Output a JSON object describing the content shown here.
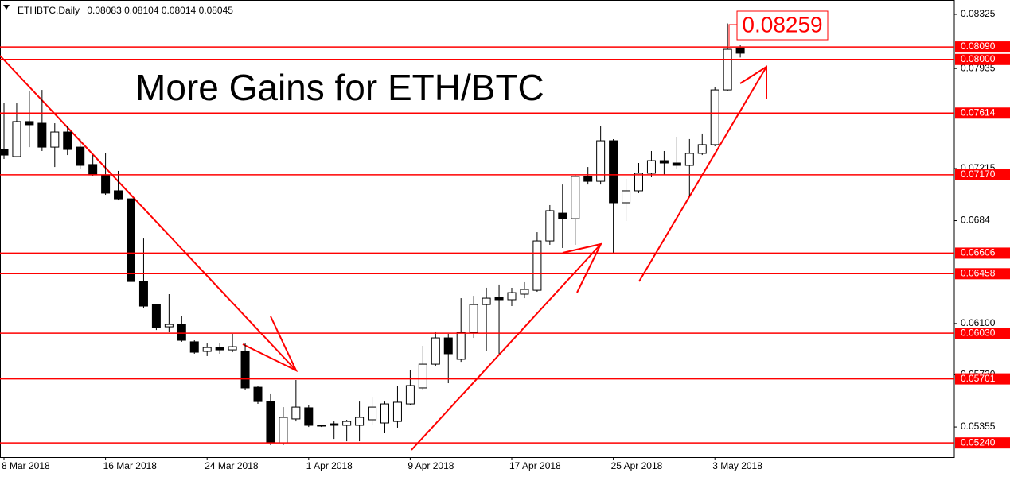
{
  "chart_data": {
    "type": "candlestick",
    "title": "More Gains for ETH/BTC",
    "symbol": "ETHBTC,Daily",
    "categories": [
      "8 Mar 2018",
      null,
      null,
      null,
      null,
      null,
      null,
      null,
      "16 Mar 2018",
      null,
      null,
      null,
      null,
      null,
      null,
      null,
      "24 Mar 2018",
      null,
      null,
      null,
      null,
      null,
      null,
      null,
      "1 Apr 2018",
      null,
      null,
      null,
      null,
      null,
      null,
      null,
      "9 Apr 2018",
      null,
      null,
      null,
      null,
      null,
      null,
      null,
      "17 Apr 2018",
      null,
      null,
      null,
      null,
      null,
      null,
      null,
      "25 Apr 2018",
      null,
      null,
      null,
      null,
      null,
      null,
      null,
      "3 May 2018",
      null,
      null
    ],
    "open": [
      0.07352,
      0.07301,
      0.07553,
      0.07541,
      0.07369,
      0.07478,
      0.07369,
      0.07244,
      0.07169,
      0.07055,
      0.06997,
      0.06402,
      0.06236,
      0.06076,
      0.06093,
      0.05968,
      0.05899,
      0.05927,
      0.0591,
      0.05899,
      0.05641,
      0.05538,
      0.05241,
      0.05413,
      0.05493,
      0.05367,
      0.05378,
      0.05367,
      0.05367,
      0.05407,
      0.05384,
      0.05395,
      0.05521,
      0.05636,
      0.05807,
      0.05996,
      0.05842,
      0.06036,
      0.06236,
      0.06288,
      0.06271,
      0.06311,
      0.06339,
      0.06694,
      0.06894,
      0.06854,
      0.07158,
      0.07123,
      0.07415,
      0.06969,
      0.07055,
      0.07181,
      0.07272,
      0.07255,
      0.07238,
      0.07324,
      0.07387,
      0.07781,
      0.08083
    ],
    "high": [
      0.07684,
      0.07684,
      0.0777,
      0.07781,
      0.07541,
      0.07524,
      0.07427,
      0.07312,
      0.07329,
      0.07198,
      0.07026,
      0.06711,
      0.06236,
      0.06311,
      0.06151,
      0.05979,
      0.05956,
      0.05956,
      0.06025,
      0.05956,
      0.05653,
      0.05596,
      0.05498,
      0.05693,
      0.0551,
      0.05372,
      0.05395,
      0.05407,
      0.05538,
      0.05567,
      0.05538,
      0.05653,
      0.05767,
      0.05939,
      0.06036,
      0.06025,
      0.06282,
      0.06299,
      0.06357,
      0.0638,
      0.06357,
      0.06397,
      0.06757,
      0.06952,
      0.071,
      0.07169,
      0.07226,
      0.07524,
      0.07427,
      0.07141,
      0.07255,
      0.07341,
      0.07341,
      0.07444,
      0.07427,
      0.07467,
      0.07799,
      0.08259,
      0.08104
    ],
    "low": [
      0.07284,
      0.07295,
      0.07369,
      0.07341,
      0.07226,
      0.07312,
      0.07215,
      0.07158,
      0.07026,
      0.06986,
      0.06071,
      0.06208,
      0.06053,
      0.06036,
      0.05968,
      0.05882,
      0.05865,
      0.05882,
      0.05893,
      0.05624,
      0.05521,
      0.05224,
      0.05224,
      0.05395,
      0.05355,
      0.05355,
      0.05269,
      0.05252,
      0.05252,
      0.05367,
      0.0531,
      0.0535,
      0.0551,
      0.05624,
      0.05796,
      0.0567,
      0.05824,
      0.05996,
      0.05899,
      0.05882,
      0.06225,
      0.06282,
      0.06328,
      0.06666,
      0.06643,
      0.06666,
      0.071,
      0.071,
      0.06608,
      0.06837,
      0.07038,
      0.07152,
      0.07169,
      0.07209,
      0.0702,
      0.07312,
      0.07375,
      0.0777,
      0.08014
    ],
    "close": [
      0.07312,
      0.07553,
      0.0753,
      0.07369,
      0.07478,
      0.07352,
      0.07238,
      0.07169,
      0.07038,
      0.06997,
      0.06402,
      0.06225,
      0.06071,
      0.06093,
      0.05979,
      0.05893,
      0.05927,
      0.0591,
      0.05933,
      0.05636,
      0.05538,
      0.05241,
      0.05424,
      0.05498,
      0.05367,
      0.05367,
      0.05367,
      0.05395,
      0.05424,
      0.05498,
      0.05521,
      0.05533,
      0.05653,
      0.05807,
      0.05996,
      0.05882,
      0.06036,
      0.06236,
      0.06282,
      0.06271,
      0.06322,
      0.06345,
      0.06694,
      0.06912,
      0.06854,
      0.07158,
      0.07123,
      0.07415,
      0.06969,
      0.07055,
      0.07181,
      0.07272,
      0.07255,
      0.07238,
      0.07324,
      0.07387,
      0.07781,
      0.08073,
      0.08045
    ],
    "up_color": "#ffffff",
    "down_color": "#000000",
    "ylim": [
      0.05138,
      0.08428
    ],
    "yticks": [
      0.08325,
      0.07935,
      0.07215,
      0.0684,
      {
        "value": 0.061,
        "label": "0.06100"
      },
      {
        "value": 0.0573,
        "label": "0.05730"
      },
      0.05355
    ],
    "levels": [
      {
        "value": 0.0809,
        "label": "0.08090"
      },
      {
        "value": 0.08,
        "label": "0.08000"
      },
      {
        "value": 0.07614,
        "label": "0.07614"
      },
      {
        "value": 0.0717,
        "label": "0.07170"
      },
      {
        "value": 0.06606,
        "label": "0.06606"
      },
      {
        "value": 0.06458,
        "label": "0.06458"
      },
      {
        "value": 0.0603,
        "label": "0.06030"
      },
      {
        "value": 0.05701,
        "label": "0.05701"
      },
      {
        "value": 0.0524,
        "label": "0.05240"
      }
    ],
    "level_color": "#ff0000",
    "grid": false
  }
}
